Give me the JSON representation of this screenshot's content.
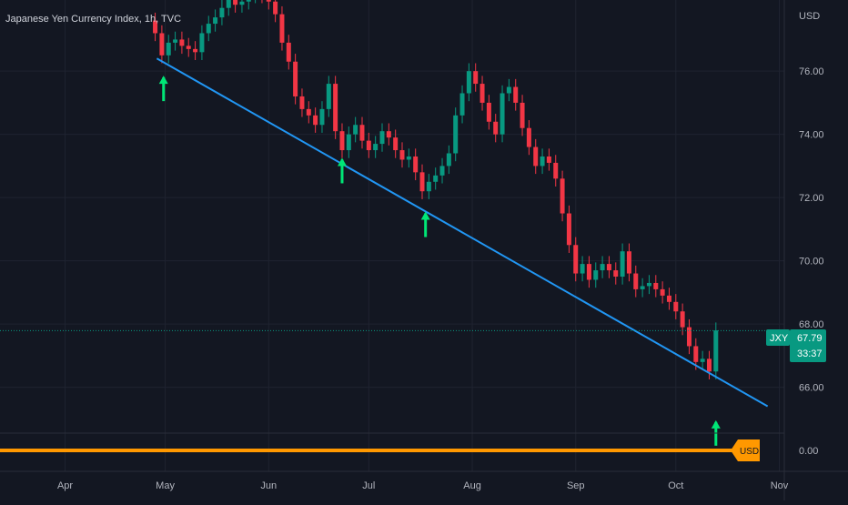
{
  "header": {
    "title": "Japanese Yen Currency Index, 1h, TVC"
  },
  "price_axis": {
    "currency_label": "USD"
  },
  "price_badge": {
    "symbol": "JXY",
    "price": "67.79",
    "countdown": "33:37",
    "color": "#089981"
  },
  "indicator_pane": {
    "value_label": "0.00",
    "badge_label": "USD",
    "line_color": "#ff9800"
  },
  "trendline": {
    "color": "#2196f3",
    "from": {
      "t": 27.5,
      "p": 76.4
    },
    "to": {
      "t": 210.5,
      "p": 65.4
    }
  },
  "signals": {
    "color": "#00e676",
    "points": [
      {
        "t": 29.5,
        "p": 75.8
      },
      {
        "t": 83,
        "p": 73.2
      },
      {
        "t": 108,
        "p": 71.5
      },
      {
        "t": 195,
        "p": 64.9
      }
    ]
  },
  "chart_data": {
    "type": "candlestick",
    "title": "Japanese Yen Currency Index, 1h, TVC",
    "xlabel": "",
    "ylabel": "USD",
    "x_unit": "days since Apr 1",
    "x_tick_labels": [
      "Apr",
      "May",
      "Jun",
      "Jul",
      "Aug",
      "Sep",
      "Oct",
      "Nov"
    ],
    "x_ticks": [
      0,
      30,
      61,
      91,
      122,
      153,
      183,
      214
    ],
    "y_tick_labels": [
      "76.00",
      "74.00",
      "72.00",
      "70.00",
      "68.00",
      "66.00"
    ],
    "y_ticks": [
      76,
      74,
      72,
      70,
      68,
      66
    ],
    "ylim": [
      64.55,
      78.25
    ],
    "xlim": [
      -19.5,
      215.5
    ],
    "last_price": 67.79,
    "up_color": "#089981",
    "down_color": "#f23645",
    "series": [
      {
        "name": "JXY",
        "x": [
          25,
          27,
          29,
          31,
          33,
          35,
          37,
          39,
          41,
          43,
          45,
          47,
          49,
          51,
          53,
          55,
          57,
          59,
          61,
          63,
          65,
          67,
          69,
          71,
          73,
          75,
          77,
          79,
          81,
          83,
          85,
          87,
          89,
          91,
          93,
          95,
          97,
          99,
          101,
          103,
          105,
          107,
          109,
          111,
          113,
          115,
          117,
          119,
          121,
          123,
          125,
          127,
          129,
          131,
          133,
          135,
          137,
          139,
          141,
          143,
          145,
          147,
          149,
          151,
          153,
          155,
          157,
          159,
          161,
          163,
          165,
          167,
          169,
          171,
          173,
          175,
          177,
          179,
          181,
          183,
          185,
          187,
          189,
          191,
          193,
          195
        ],
        "y": [
          77.6,
          77.2,
          76.5,
          76.9,
          77.0,
          76.8,
          76.7,
          76.6,
          77.2,
          77.5,
          77.7,
          78.0,
          78.3,
          78.1,
          78.2,
          78.4,
          78.6,
          78.4,
          78.2,
          77.8,
          76.9,
          76.3,
          75.2,
          74.8,
          74.6,
          74.3,
          74.8,
          75.6,
          74.1,
          73.5,
          74.0,
          74.3,
          73.8,
          73.5,
          73.7,
          74.1,
          73.9,
          73.5,
          73.2,
          73.3,
          72.8,
          72.2,
          72.5,
          72.7,
          73.0,
          73.4,
          74.6,
          75.3,
          76.0,
          75.6,
          75.0,
          74.4,
          74.0,
          75.3,
          75.5,
          75.0,
          74.2,
          73.6,
          73.0,
          73.3,
          73.1,
          72.6,
          71.5,
          70.5,
          69.6,
          69.9,
          69.4,
          69.7,
          69.9,
          69.7,
          69.5,
          70.3,
          69.6,
          69.1,
          69.2,
          69.3,
          69.1,
          68.9,
          68.7,
          68.4,
          67.9,
          67.3,
          66.8,
          66.9,
          66.5,
          67.8
        ],
        "values": [
          77.6,
          77.2,
          76.5,
          76.9,
          77.0,
          76.8,
          76.7,
          76.6,
          77.2,
          77.5,
          77.7,
          78.0,
          78.3,
          78.1,
          78.2,
          78.4,
          78.6,
          78.4,
          78.2,
          77.8,
          76.9,
          76.3,
          75.2,
          74.8,
          74.6,
          74.3,
          74.8,
          75.6,
          74.1,
          73.5,
          74.0,
          74.3,
          73.8,
          73.5,
          73.7,
          74.1,
          73.9,
          73.5,
          73.2,
          73.3,
          72.8,
          72.2,
          72.5,
          72.7,
          73.0,
          73.4,
          74.6,
          75.3,
          76.0,
          75.6,
          75.0,
          74.4,
          74.0,
          75.3,
          75.5,
          75.0,
          74.2,
          73.6,
          73.0,
          73.3,
          73.1,
          72.6,
          71.5,
          70.5,
          69.6,
          69.9,
          69.4,
          69.7,
          69.9,
          69.7,
          69.5,
          70.3,
          69.6,
          69.1,
          69.2,
          69.3,
          69.1,
          68.9,
          68.7,
          68.4,
          67.9,
          67.3,
          66.8,
          66.9,
          66.5,
          67.8
        ]
      }
    ],
    "grid": true,
    "legend": "none"
  }
}
